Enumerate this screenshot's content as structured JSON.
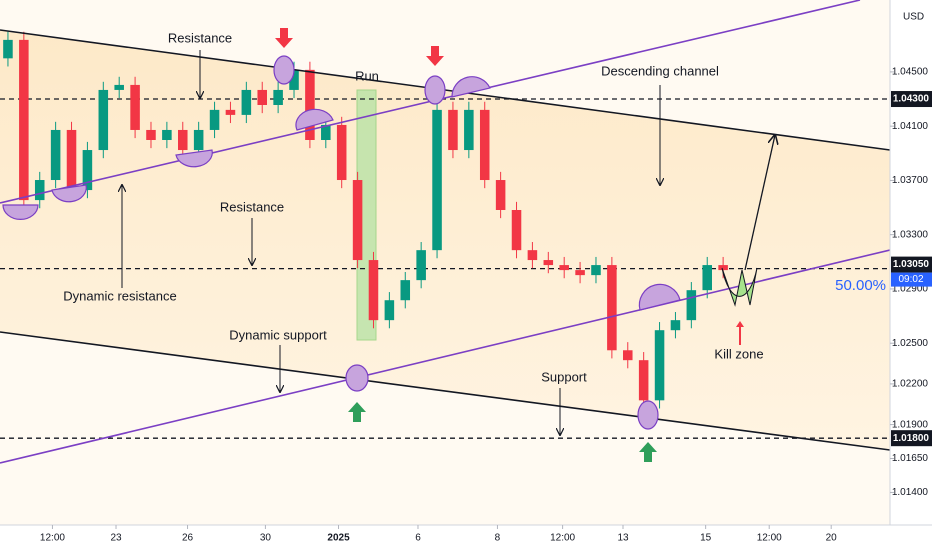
{
  "chart_data": {
    "type": "candlestick",
    "currency": "USD",
    "countdown": "09:02",
    "percent_label": "50.00%",
    "annotations": [
      "Resistance",
      "Run",
      "Descending channel",
      "Resistance",
      "Dynamic resistance",
      "Dynamic support",
      "Support",
      "Kill zone"
    ],
    "open": [
      1.046,
      1.04736,
      1.03555,
      1.03703,
      1.04072,
      1.03629,
      1.03924,
      1.04367,
      1.04404,
      1.04072,
      1.03998,
      1.04072,
      1.03924,
      1.04072,
      1.0422,
      1.04183,
      1.04367,
      1.04256,
      1.04367,
      1.04515,
      1.03998,
      1.04109,
      1.03703,
      1.03113,
      1.0267,
      1.02817,
      1.02965,
      1.03186,
      1.0422,
      1.03924,
      1.0422,
      1.03703,
      1.03482,
      1.03186,
      1.03113,
      1.03076,
      1.03039,
      1.03002,
      1.03076,
      1.02448,
      1.02375,
      1.02079,
      1.02596,
      1.0267,
      1.02891,
      1.03076
    ],
    "high": [
      1.04796,
      1.04796,
      1.03763,
      1.04132,
      1.04132,
      1.03984,
      1.04427,
      1.04464,
      1.04464,
      1.04132,
      1.04132,
      1.04132,
      1.04132,
      1.0428,
      1.0428,
      1.04427,
      1.04427,
      1.04427,
      1.04575,
      1.04575,
      1.04169,
      1.04169,
      1.03763,
      1.03173,
      1.02877,
      1.03025,
      1.03246,
      1.0428,
      1.0428,
      1.0428,
      1.0428,
      1.03763,
      1.03542,
      1.03246,
      1.03173,
      1.03136,
      1.03099,
      1.03136,
      1.03136,
      1.02508,
      1.02435,
      1.02656,
      1.0273,
      1.02951,
      1.03136,
      1.03136
    ],
    "low": [
      1.0454,
      1.03495,
      1.03495,
      1.03643,
      1.03569,
      1.03569,
      1.03864,
      1.04307,
      1.04012,
      1.03938,
      1.03938,
      1.03864,
      1.03864,
      1.04012,
      1.04123,
      1.04123,
      1.04196,
      1.04196,
      1.04307,
      1.03938,
      1.03938,
      1.03643,
      1.03053,
      1.0261,
      1.0261,
      1.02757,
      1.02905,
      1.03126,
      1.03864,
      1.03864,
      1.03643,
      1.03422,
      1.03126,
      1.03053,
      1.03016,
      1.02979,
      1.02942,
      1.02942,
      1.02388,
      1.02315,
      1.02019,
      1.02019,
      1.02536,
      1.0261,
      1.02831,
      1.02979
    ],
    "close": [
      1.04736,
      1.03555,
      1.03703,
      1.04072,
      1.03629,
      1.03924,
      1.04367,
      1.04404,
      1.04072,
      1.03998,
      1.04072,
      1.03924,
      1.04072,
      1.0422,
      1.04183,
      1.04367,
      1.04256,
      1.04367,
      1.04515,
      1.03998,
      1.04109,
      1.03703,
      1.03113,
      1.0267,
      1.02817,
      1.02965,
      1.03186,
      1.0422,
      1.03924,
      1.0422,
      1.03703,
      1.03482,
      1.03186,
      1.03113,
      1.03076,
      1.03039,
      1.03002,
      1.03076,
      1.02448,
      1.02375,
      1.02079,
      1.02596,
      1.0267,
      1.02891,
      1.03076,
      1.03039
    ],
    "up_color": "#089981",
    "down_color": "#f23645",
    "xlim": [
      0,
      56
    ],
    "xticks": [
      {
        "value": 3.3,
        "label": "12:00"
      },
      {
        "value": 7.3,
        "label": "23"
      },
      {
        "value": 11.8,
        "label": "26"
      },
      {
        "value": 16.7,
        "label": "30"
      },
      {
        "value": 21.3,
        "label": "2025"
      },
      {
        "value": 26.3,
        "label": "6"
      },
      {
        "value": 31.3,
        "label": "8"
      },
      {
        "value": 35.4,
        "label": "12:00"
      },
      {
        "value": 39.2,
        "label": "13"
      },
      {
        "value": 44.4,
        "label": "15"
      },
      {
        "value": 48.4,
        "label": "12:00"
      },
      {
        "value": 52.3,
        "label": "20"
      }
    ],
    "ylim": [
      1.0116,
      1.0503
    ],
    "yticks": [
      {
        "value": 1.045,
        "label": "1.04500"
      },
      {
        "value": 1.041,
        "label": "1.04100"
      },
      {
        "value": 1.037,
        "label": "1.03700"
      },
      {
        "value": 1.033,
        "label": "1.03300"
      },
      {
        "value": 1.029,
        "label": "1.02900"
      },
      {
        "value": 1.025,
        "label": "1.02500"
      },
      {
        "value": 1.022,
        "label": "1.02200"
      },
      {
        "value": 1.019,
        "label": "1.01900"
      },
      {
        "value": 1.0165,
        "label": "1.01650"
      },
      {
        "value": 1.014,
        "label": "1.01400"
      }
    ],
    "levels": [
      {
        "value": 1.043,
        "label": "1.04300"
      },
      {
        "value": 1.0305,
        "label": "1.03050"
      },
      {
        "value": 1.018,
        "label": "1.01800"
      }
    ]
  }
}
